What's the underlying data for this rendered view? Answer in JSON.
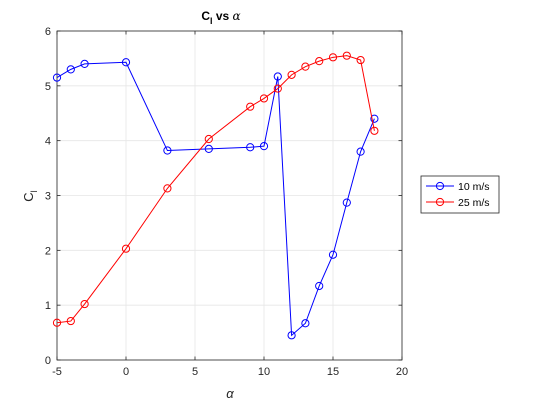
{
  "chart_data": {
    "type": "line",
    "title_main": "C",
    "title_sub": "l",
    "title_mid": " vs ",
    "title_greek": "α",
    "xlabel": "α",
    "ylabel_main": "C",
    "ylabel_sub": "l",
    "xlim": [
      -5,
      20
    ],
    "ylim": [
      0,
      6
    ],
    "xticks": [
      -5,
      0,
      5,
      10,
      15,
      20
    ],
    "yticks": [
      0,
      1,
      2,
      3,
      4,
      5,
      6
    ],
    "grid": true,
    "legend_position": "right",
    "series": [
      {
        "name": "10 m/s",
        "color": "#0000ff",
        "marker": "circle",
        "x": [
          -5,
          -4,
          -3,
          0,
          3,
          6,
          9,
          10,
          11,
          12,
          13,
          14,
          15,
          16,
          17,
          18
        ],
        "y": [
          5.15,
          5.3,
          5.4,
          5.43,
          3.82,
          3.85,
          3.88,
          3.9,
          5.17,
          0.45,
          0.67,
          1.35,
          1.92,
          2.87,
          3.8,
          4.4
        ]
      },
      {
        "name": "25 m/s",
        "color": "#ff0000",
        "marker": "circle",
        "x": [
          -5,
          -4,
          -3,
          0,
          3,
          6,
          9,
          10,
          11,
          12,
          13,
          14,
          15,
          16,
          17,
          18
        ],
        "y": [
          0.68,
          0.71,
          1.02,
          2.03,
          3.13,
          4.03,
          4.62,
          4.77,
          4.95,
          5.2,
          5.35,
          5.45,
          5.52,
          5.55,
          5.47,
          4.18
        ]
      }
    ]
  }
}
